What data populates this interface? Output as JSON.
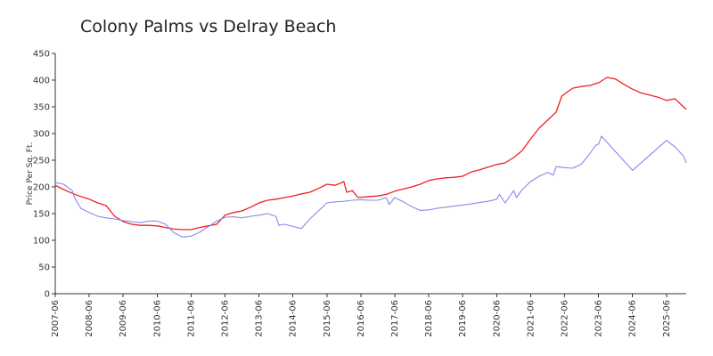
{
  "chart_data": {
    "type": "line",
    "title": "Colony Palms vs Delray Beach",
    "xlabel": "",
    "ylabel": "Price Per Sq. Ft.",
    "ylim": [
      0,
      450
    ],
    "yticks": [
      0,
      50,
      100,
      150,
      200,
      250,
      300,
      350,
      400,
      450
    ],
    "xlim": [
      "2007-06",
      "2026-01"
    ],
    "xticks": [
      "2007-06",
      "2008-06",
      "2009-06",
      "2010-06",
      "2011-06",
      "2012-06",
      "2013-06",
      "2014-06",
      "2015-06",
      "2016-06",
      "2017-06",
      "2018-06",
      "2019-06",
      "2020-06",
      "2021-06",
      "2022-06",
      "2023-06",
      "2024-06",
      "2025-06"
    ],
    "grid": false,
    "legend": "none",
    "series": [
      {
        "color": "#ee2222",
        "points": [
          [
            "2007-06",
            203
          ],
          [
            "2007-09",
            195
          ],
          [
            "2007-12",
            188
          ],
          [
            "2008-03",
            182
          ],
          [
            "2008-06",
            177
          ],
          [
            "2008-09",
            170
          ],
          [
            "2008-12",
            165
          ],
          [
            "2009-01",
            158
          ],
          [
            "2009-03",
            145
          ],
          [
            "2009-06",
            135
          ],
          [
            "2009-09",
            130
          ],
          [
            "2009-12",
            128
          ],
          [
            "2010-03",
            128
          ],
          [
            "2010-06",
            127
          ],
          [
            "2010-09",
            124
          ],
          [
            "2010-12",
            121
          ],
          [
            "2011-03",
            120
          ],
          [
            "2011-06",
            120
          ],
          [
            "2011-09",
            124
          ],
          [
            "2011-12",
            127
          ],
          [
            "2012-03",
            130
          ],
          [
            "2012-06",
            147
          ],
          [
            "2012-09",
            152
          ],
          [
            "2012-12",
            155
          ],
          [
            "2013-03",
            162
          ],
          [
            "2013-06",
            170
          ],
          [
            "2013-09",
            175
          ],
          [
            "2013-12",
            177
          ],
          [
            "2014-03",
            180
          ],
          [
            "2014-06",
            183
          ],
          [
            "2014-09",
            187
          ],
          [
            "2014-12",
            190
          ],
          [
            "2015-03",
            197
          ],
          [
            "2015-06",
            205
          ],
          [
            "2015-09",
            203
          ],
          [
            "2015-12",
            210
          ],
          [
            "2016-01",
            190
          ],
          [
            "2016-03",
            193
          ],
          [
            "2016-05",
            180
          ],
          [
            "2016-09",
            182
          ],
          [
            "2016-12",
            183
          ],
          [
            "2017-03",
            186
          ],
          [
            "2017-06",
            192
          ],
          [
            "2017-09",
            196
          ],
          [
            "2017-12",
            200
          ],
          [
            "2018-03",
            205
          ],
          [
            "2018-06",
            212
          ],
          [
            "2018-09",
            215
          ],
          [
            "2018-12",
            217
          ],
          [
            "2019-03",
            218
          ],
          [
            "2019-06",
            220
          ],
          [
            "2019-09",
            228
          ],
          [
            "2019-12",
            232
          ],
          [
            "2020-03",
            237
          ],
          [
            "2020-06",
            242
          ],
          [
            "2020-09",
            245
          ],
          [
            "2020-12",
            255
          ],
          [
            "2021-03",
            268
          ],
          [
            "2021-06",
            290
          ],
          [
            "2021-09",
            310
          ],
          [
            "2021-12",
            325
          ],
          [
            "2022-03",
            340
          ],
          [
            "2022-05",
            370
          ],
          [
            "2022-07",
            378
          ],
          [
            "2022-09",
            385
          ],
          [
            "2022-12",
            388
          ],
          [
            "2023-03",
            390
          ],
          [
            "2023-06",
            395
          ],
          [
            "2023-09",
            405
          ],
          [
            "2023-12",
            402
          ],
          [
            "2024-03",
            392
          ],
          [
            "2024-06",
            383
          ],
          [
            "2024-09",
            376
          ],
          [
            "2024-12",
            372
          ],
          [
            "2025-03",
            368
          ],
          [
            "2025-06",
            362
          ],
          [
            "2025-09",
            365
          ],
          [
            "2025-11",
            355
          ],
          [
            "2026-01",
            345
          ]
        ]
      },
      {
        "color": "#8888ee",
        "points": [
          [
            "2007-06",
            208
          ],
          [
            "2007-09",
            205
          ],
          [
            "2007-12",
            193
          ],
          [
            "2008-01",
            178
          ],
          [
            "2008-03",
            160
          ],
          [
            "2008-06",
            152
          ],
          [
            "2008-09",
            145
          ],
          [
            "2008-12",
            142
          ],
          [
            "2009-03",
            140
          ],
          [
            "2009-06",
            137
          ],
          [
            "2009-09",
            135
          ],
          [
            "2009-12",
            133
          ],
          [
            "2010-03",
            136
          ],
          [
            "2010-06",
            136
          ],
          [
            "2010-09",
            130
          ],
          [
            "2010-12",
            114
          ],
          [
            "2011-03",
            106
          ],
          [
            "2011-06",
            108
          ],
          [
            "2011-09",
            115
          ],
          [
            "2011-12",
            125
          ],
          [
            "2012-03",
            136
          ],
          [
            "2012-06",
            143
          ],
          [
            "2012-09",
            144
          ],
          [
            "2012-12",
            142
          ],
          [
            "2013-03",
            145
          ],
          [
            "2013-06",
            147
          ],
          [
            "2013-09",
            150
          ],
          [
            "2013-12",
            145
          ],
          [
            "2014-01",
            128
          ],
          [
            "2014-03",
            130
          ],
          [
            "2014-06",
            126
          ],
          [
            "2014-09",
            122
          ],
          [
            "2014-12",
            140
          ],
          [
            "2015-03",
            155
          ],
          [
            "2015-06",
            170
          ],
          [
            "2015-09",
            172
          ],
          [
            "2015-12",
            173
          ],
          [
            "2016-03",
            175
          ],
          [
            "2016-06",
            176
          ],
          [
            "2016-09",
            175
          ],
          [
            "2016-12",
            175
          ],
          [
            "2017-03",
            180
          ],
          [
            "2017-04",
            167
          ],
          [
            "2017-06",
            180
          ],
          [
            "2017-09",
            172
          ],
          [
            "2017-12",
            163
          ],
          [
            "2018-03",
            156
          ],
          [
            "2018-06",
            157
          ],
          [
            "2018-09",
            160
          ],
          [
            "2018-12",
            162
          ],
          [
            "2019-03",
            164
          ],
          [
            "2019-06",
            166
          ],
          [
            "2019-09",
            168
          ],
          [
            "2019-12",
            171
          ],
          [
            "2020-03",
            173
          ],
          [
            "2020-06",
            177
          ],
          [
            "2020-07",
            186
          ],
          [
            "2020-09",
            170
          ],
          [
            "2020-12",
            193
          ],
          [
            "2021-01",
            180
          ],
          [
            "2021-03",
            195
          ],
          [
            "2021-06",
            210
          ],
          [
            "2021-09",
            220
          ],
          [
            "2021-12",
            227
          ],
          [
            "2022-02",
            222
          ],
          [
            "2022-03",
            238
          ],
          [
            "2022-06",
            236
          ],
          [
            "2022-09",
            235
          ],
          [
            "2022-12",
            243
          ],
          [
            "2023-03",
            263
          ],
          [
            "2023-05",
            278
          ],
          [
            "2023-06",
            280
          ],
          [
            "2023-07",
            295
          ],
          [
            "2024-06",
            231
          ],
          [
            "2025-06",
            287
          ],
          [
            "2025-09",
            275
          ],
          [
            "2025-12",
            258
          ],
          [
            "2026-01",
            245
          ]
        ]
      }
    ]
  }
}
